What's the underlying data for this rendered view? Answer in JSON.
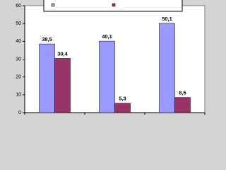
{
  "chart_data": {
    "type": "bar",
    "categories": [
      null,
      null,
      null
    ],
    "series": [
      {
        "color": "#9999ff",
        "values": [
          38.5,
          40.1,
          50.1
        ],
        "value_labels": [
          "38,5",
          "40,1",
          "50,1"
        ]
      },
      {
        "color": "#993366",
        "values": [
          30.4,
          5.3,
          8.5
        ],
        "value_labels": [
          "30,4",
          "5,3",
          "8,5"
        ]
      }
    ],
    "ylim": [
      0,
      60
    ],
    "yticks": [
      0,
      10,
      20,
      30,
      40,
      50,
      60
    ],
    "legend": "top"
  }
}
